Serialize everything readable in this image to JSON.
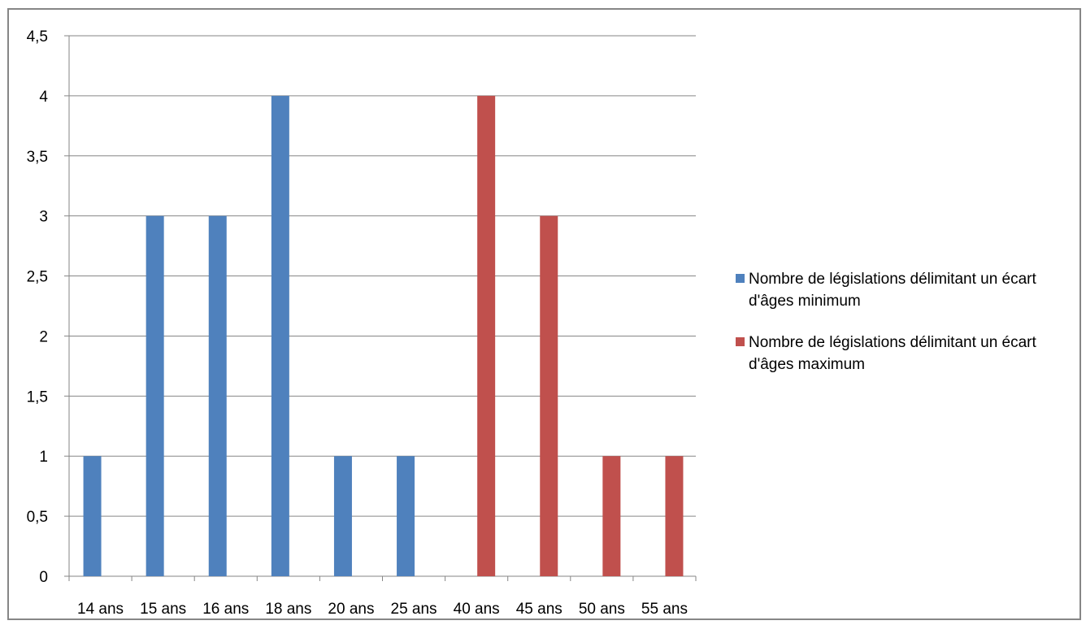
{
  "chart_data": {
    "type": "bar",
    "categories": [
      "14 ans",
      "15 ans",
      "16 ans",
      "18 ans",
      "20 ans",
      "25 ans",
      "40 ans",
      "45 ans",
      "50 ans",
      "55 ans"
    ],
    "series": [
      {
        "name": "Nombre de législations délimitant un écart d'âges minimum",
        "color": "#4f81bd",
        "values": [
          1,
          3,
          3,
          4,
          1,
          1,
          0,
          0,
          0,
          0
        ]
      },
      {
        "name": "Nombre de législations délimitant un écart d'âges maximum",
        "color": "#c0504d",
        "values": [
          0,
          0,
          0,
          0,
          0,
          0,
          4,
          3,
          1,
          1
        ]
      }
    ],
    "ylim": [
      0,
      4.5
    ],
    "yticks": [
      "0",
      "0,5",
      "1",
      "1,5",
      "2",
      "2,5",
      "3",
      "3,5",
      "4",
      "4,5"
    ],
    "grid": true,
    "legend_position": "right"
  }
}
